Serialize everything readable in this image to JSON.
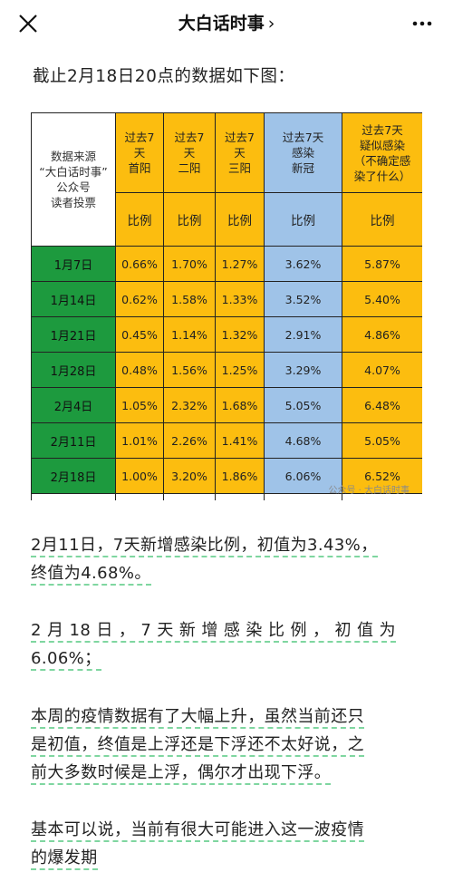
{
  "header": {
    "title": "大白话时事",
    "chevron": "›"
  },
  "intro": "截止2月18日20点的数据如下图：",
  "table": {
    "source_label": [
      "数据来源",
      "“大白话时事”",
      "公众号",
      "读者投票"
    ],
    "columns": [
      [
        "过去7",
        "天",
        "首阳"
      ],
      [
        "过去7",
        "天",
        "二阳"
      ],
      [
        "过去7",
        "天",
        "三阳"
      ],
      [
        "过去7天",
        "感染",
        "新冠"
      ],
      [
        "过去7天",
        "疑似感染",
        "（不确定感",
        "染了什么）"
      ]
    ],
    "sub_label": "比例",
    "rows": [
      {
        "date": "1月7日",
        "values": [
          "0.66%",
          "1.70%",
          "1.27%",
          "3.62%",
          "5.87%"
        ]
      },
      {
        "date": "1月14日",
        "values": [
          "0.62%",
          "1.58%",
          "1.33%",
          "3.52%",
          "5.40%"
        ]
      },
      {
        "date": "1月21日",
        "values": [
          "0.45%",
          "1.14%",
          "1.32%",
          "2.91%",
          "4.86%"
        ]
      },
      {
        "date": "1月28日",
        "values": [
          "0.48%",
          "1.56%",
          "1.25%",
          "3.29%",
          "4.07%"
        ]
      },
      {
        "date": "2月4日",
        "values": [
          "1.05%",
          "2.32%",
          "1.68%",
          "5.05%",
          "6.48%"
        ]
      },
      {
        "date": "2月11日",
        "values": [
          "1.01%",
          "2.26%",
          "1.41%",
          "4.68%",
          "5.05%"
        ]
      },
      {
        "date": "2月18日",
        "values": [
          "1.00%",
          "3.20%",
          "1.86%",
          "6.06%",
          "6.52%"
        ]
      }
    ],
    "watermark": "公众号 · 大白话时事"
  },
  "paragraphs": {
    "p1_line1": "2月11日，7天新增感染比例，初值为3.43%，",
    "p1_line2": "终值为4.68%。",
    "p2_line1": "2 月 18 日 ， 7 天 新 增 感 染 比 例 ， 初 值 为",
    "p2_line2": "6.06%；",
    "p3_line1": "本周的疫情数据有了大幅上升，虽然当前还只",
    "p3_line2": "是初值，终值是上浮还是下浮还不太好说，之",
    "p3_line3": "前大多数时候是上浮，偶尔才出现下浮。",
    "p4_line1": "基本可以说，当前有很大可能进入这一波疫情",
    "p4_line2": "的爆发期"
  },
  "colors": {
    "yellow": "#fcbd0f",
    "blue": "#9fc3e8",
    "green": "#1d9a3e",
    "underline": "#7fd6a0"
  }
}
